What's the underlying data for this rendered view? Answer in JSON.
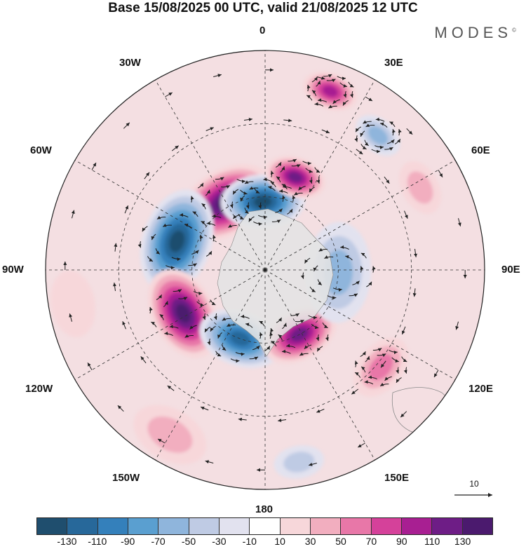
{
  "title": "Base 15/08/2025 00 UTC, valid 21/08/2025 12 UTC",
  "brand": "MODES",
  "brand_mark": "©",
  "longitude_labels": [
    "0",
    "30E",
    "60E",
    "90E",
    "120E",
    "150E",
    "180",
    "150W",
    "120W",
    "90W",
    "60W",
    "30W"
  ],
  "vector_reference": {
    "value": "10"
  },
  "colorbar": {
    "colors": [
      "#1f4e6e",
      "#27689a",
      "#3480bb",
      "#5a9fd0",
      "#8fb5dc",
      "#bfcbe4",
      "#e2e2ef",
      "#ffffff",
      "#f7d7da",
      "#f2aebf",
      "#e877a8",
      "#d5419a",
      "#a81f92",
      "#6e1d86",
      "#4b1a6e"
    ],
    "tick_labels": [
      "-130",
      "-110",
      "-90",
      "-70",
      "-50",
      "-30",
      "-10",
      "10",
      "30",
      "50",
      "70",
      "90",
      "110",
      "130"
    ]
  },
  "chart_data": {
    "type": "map",
    "projection": "south polar stereographic",
    "title": "Base 15/08/2025 00 UTC, valid 21/08/2025 12 UTC",
    "field": "filled anomaly contours with wind vectors",
    "levels": [
      -130,
      -110,
      -90,
      -70,
      -50,
      -30,
      -10,
      10,
      30,
      50,
      70,
      90,
      110,
      130
    ],
    "centers": [
      {
        "lon": -30,
        "colat": 32,
        "value": 130,
        "size": 0.9
      },
      {
        "lon": -2,
        "colat": 28,
        "value": -130,
        "size": 0.75
      },
      {
        "lon": 18,
        "colat": 40,
        "value": 110,
        "size": 0.55
      },
      {
        "lon": 20,
        "colat": 78,
        "value": 90,
        "size": 0.5
      },
      {
        "lon": 40,
        "colat": 72,
        "value": -50,
        "size": 0.45
      },
      {
        "lon": -72,
        "colat": 38,
        "value": -130,
        "size": 0.95
      },
      {
        "lon": -118,
        "colat": 38,
        "value": 130,
        "size": 0.85
      },
      {
        "lon": -160,
        "colat": 30,
        "value": -110,
        "size": 0.75
      },
      {
        "lon": 152,
        "colat": 30,
        "value": 110,
        "size": 0.7
      },
      {
        "lon": 130,
        "colat": 62,
        "value": 50,
        "size": 0.6
      },
      {
        "lon": 92,
        "colat": 30,
        "value": -50,
        "size": 0.9
      },
      {
        "lon": 62,
        "colat": 72,
        "value": 30,
        "size": 0.5
      },
      {
        "lon": -100,
        "colat": 80,
        "value": 10,
        "size": 0.6
      },
      {
        "lon": -150,
        "colat": 78,
        "value": 30,
        "size": 0.7
      },
      {
        "lon": 170,
        "colat": 80,
        "value": -30,
        "size": 0.45
      }
    ]
  }
}
